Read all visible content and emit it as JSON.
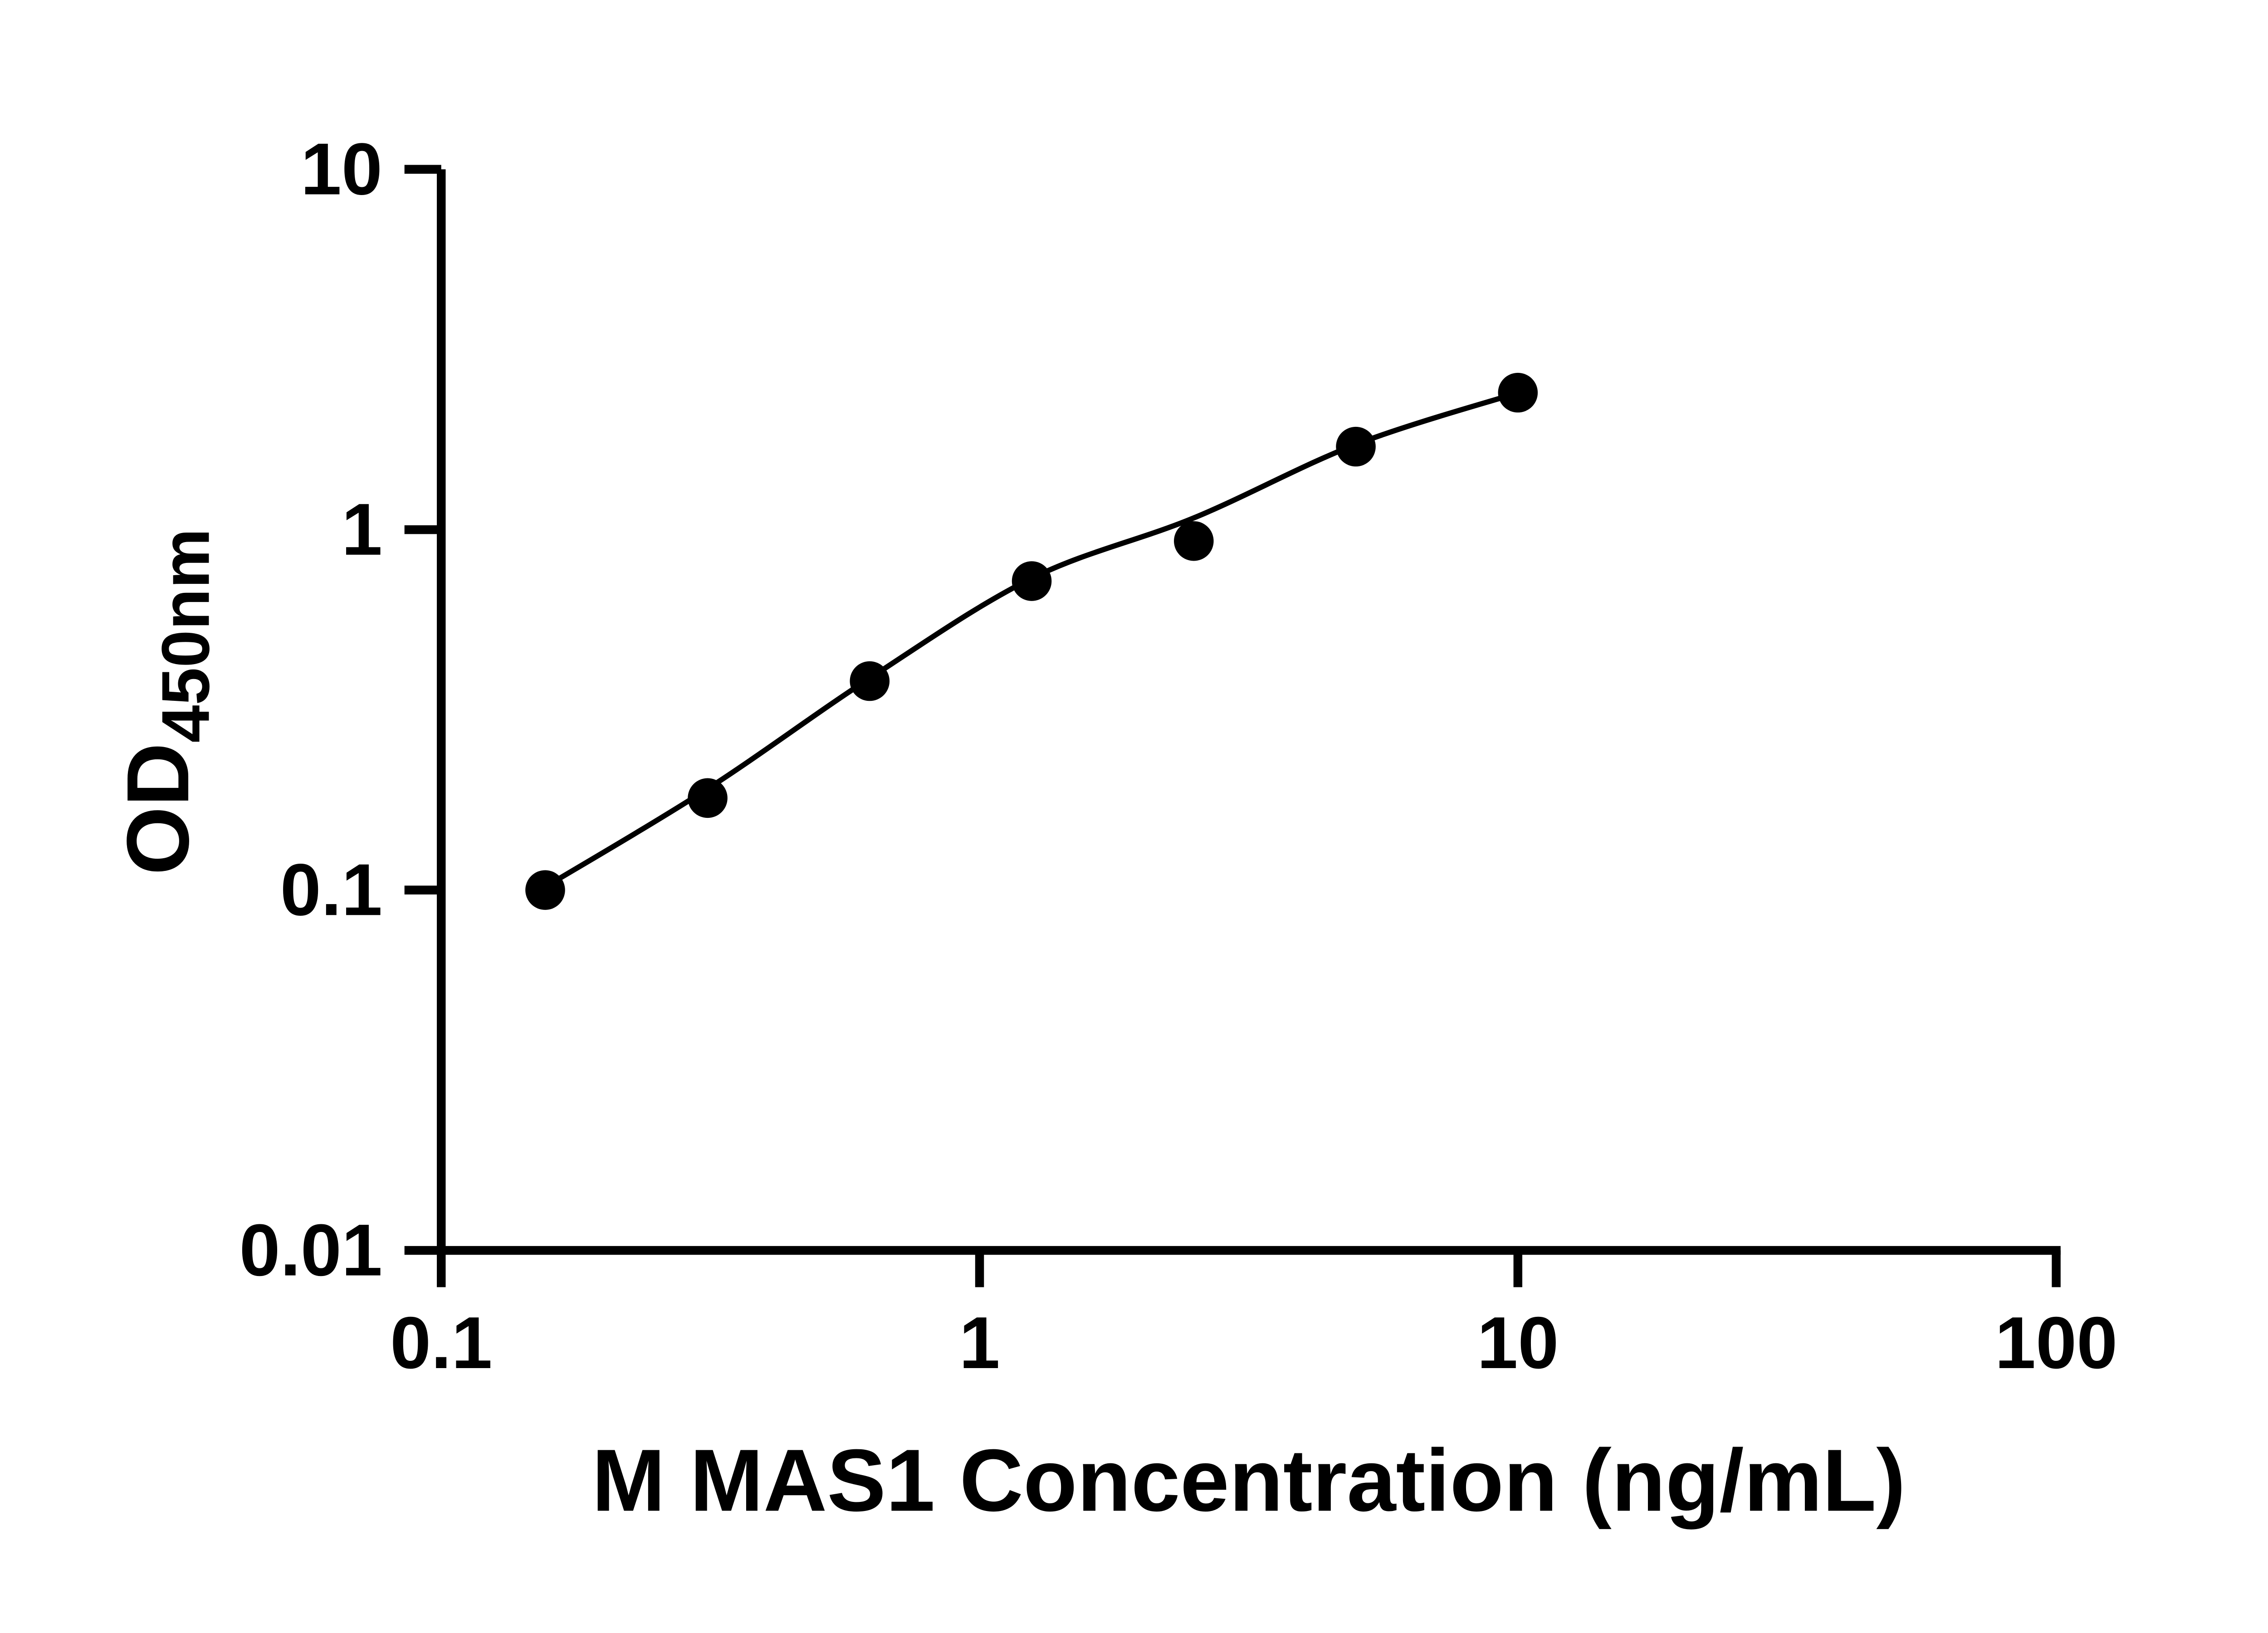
{
  "chart_data": {
    "type": "scatter",
    "x_scale": "log",
    "y_scale": "log",
    "x": [
      0.156,
      0.3125,
      0.625,
      1.25,
      2.5,
      5,
      10
    ],
    "y": [
      0.1,
      0.18,
      0.38,
      0.72,
      0.93,
      1.7,
      2.4
    ],
    "trend_line": {
      "x": [
        0.156,
        0.3125,
        0.625,
        1.25,
        2.5,
        5,
        10
      ],
      "y": [
        0.102,
        0.191,
        0.387,
        0.733,
        1.078,
        1.724,
        2.397
      ]
    },
    "title": "",
    "xlabel": "M MAS1 Concentration (ng/mL)",
    "ylabel_main": "OD",
    "ylabel_sub": "450nm",
    "xlim": [
      0.1,
      100
    ],
    "ylim": [
      0.01,
      10
    ],
    "x_ticks": [
      0.1,
      1,
      10,
      100
    ],
    "x_tick_labels": [
      "0.1",
      "1",
      "10",
      "100"
    ],
    "y_ticks": [
      0.01,
      0.1,
      1,
      10
    ],
    "y_tick_labels": [
      "0.01",
      "0.1",
      "1",
      "10"
    ],
    "grid": false,
    "legend": "none",
    "marker_color": "#000000",
    "line_color": "#000000",
    "background": "#ffffff"
  }
}
